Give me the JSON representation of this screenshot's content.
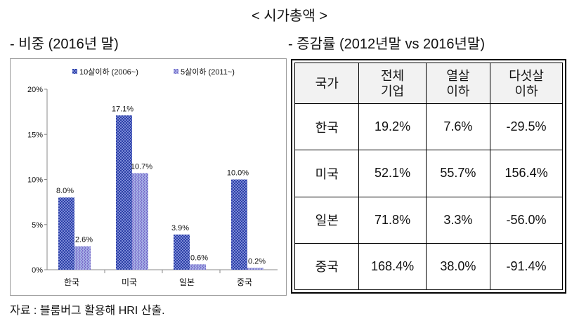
{
  "page": {
    "main_title": "< 시가총액 >",
    "left_title": "- 비중 (2016년 말)",
    "right_title": "- 증감률 (2012년말 vs 2016년말)",
    "source": "자료 : 블룸버그 활용해 HRI 산출."
  },
  "chart_data": {
    "type": "bar",
    "title": "",
    "xlabel": "",
    "ylabel": "",
    "categories": [
      "한국",
      "미국",
      "일본",
      "중국"
    ],
    "series": [
      {
        "name": "10살이하 (2006~)",
        "values": [
          8.0,
          17.1,
          3.9,
          10.0
        ],
        "labels": [
          "8.0%",
          "17.1%",
          "3.9%",
          "10.0%"
        ],
        "color": "#2b3fa6"
      },
      {
        "name": "5살이하 (2011~)",
        "values": [
          2.6,
          10.7,
          0.6,
          0.2
        ],
        "labels": [
          "2.6%",
          "10.7%",
          "0.6%",
          "0.2%"
        ],
        "color": "#7f8fd8"
      }
    ],
    "ylim": [
      0,
      20
    ],
    "yticks": [
      "0%",
      "5%",
      "10%",
      "15%",
      "20%"
    ],
    "grid": false,
    "legend_position": "top"
  },
  "table": {
    "headers": [
      "국가",
      "전체\n기업",
      "열살\n이하",
      "다섯살\n이하"
    ],
    "rows": [
      [
        "한국",
        "19.2%",
        "7.6%",
        "-29.5%"
      ],
      [
        "미국",
        "52.1%",
        "55.7%",
        "156.4%"
      ],
      [
        "일본",
        "71.8%",
        "3.3%",
        "-56.0%"
      ],
      [
        "중국",
        "168.4%",
        "38.0%",
        "-91.4%"
      ]
    ]
  }
}
